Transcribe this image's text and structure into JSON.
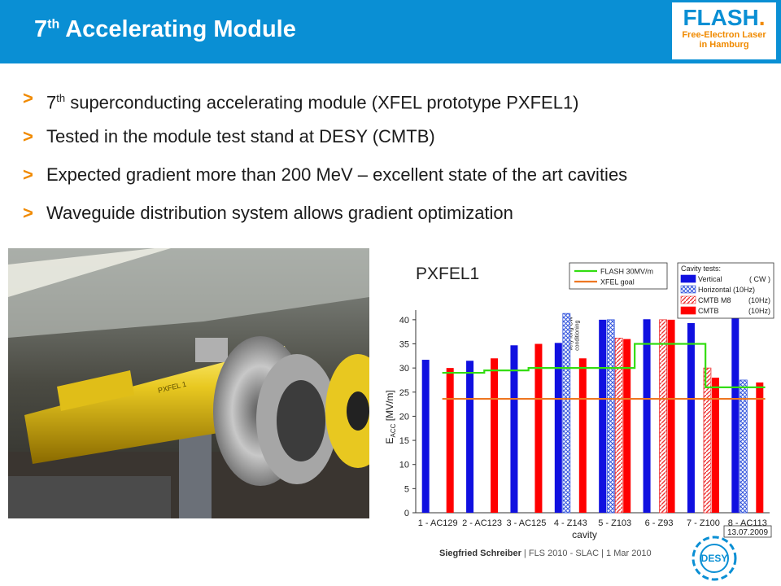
{
  "header": {
    "title_pre": "7",
    "title_sup": "th",
    "title_post": " Accelerating Module",
    "color": "#0a8fd4"
  },
  "logo": {
    "main": "FLASH",
    "dot": ".",
    "line1": "Free-Electron Laser",
    "line2": "in Hamburg"
  },
  "bullets": {
    "marker": ">",
    "b1_pre": "7",
    "b1_sup": "th",
    "b1_post": " superconducting accelerating module (XFEL prototype PXFEL1)",
    "b2": "Tested in the module test stand at DESY (CMTB)",
    "b3": "Expected gradient more than 200 MeV – excellent state of the art cavities",
    "b4": "Waveguide distribution system allows gradient optimization"
  },
  "photo": {
    "label": "PXFEL 1"
  },
  "chart_data": {
    "type": "bar",
    "title": "PXFEL1",
    "xlabel": "cavity",
    "ylabel": "E_ACC [MV/m]",
    "ylim": [
      0,
      42
    ],
    "yticks": [
      0,
      5,
      10,
      15,
      20,
      25,
      30,
      35,
      40
    ],
    "categories": [
      "1 - AC129",
      "2 - AC123",
      "3 - AC125",
      "4 - Z143",
      "5 - Z103",
      "6 - Z93",
      "7 - Z100",
      "8 - AC113"
    ],
    "series": [
      {
        "name": "Vertical",
        "suffix": "( CW )",
        "color": "#1010e0",
        "pattern": "solid",
        "values": [
          31.7,
          31.5,
          34.7,
          35.2,
          40,
          40.1,
          39.3,
          42.5
        ]
      },
      {
        "name": "Horizontal (10Hz)",
        "suffix": "",
        "color": "#3355dd",
        "pattern": "cross",
        "values": [
          null,
          null,
          null,
          41.3,
          40,
          null,
          null,
          27.5
        ]
      },
      {
        "name": "CMTB M8",
        "suffix": "(10Hz)",
        "color": "#ee3333",
        "pattern": "hatch",
        "values": [
          null,
          null,
          null,
          null,
          36.2,
          40,
          30,
          null
        ]
      },
      {
        "name": "CMTB",
        "suffix": "(10Hz)",
        "color": "#ff0000",
        "pattern": "solid",
        "values": [
          30,
          32,
          35,
          32,
          36,
          40,
          28,
          27
        ]
      }
    ],
    "lines": [
      {
        "name": "FLASH 30MV/m",
        "color": "#33dd11",
        "steps": [
          [
            0.6,
            1.55,
            29
          ],
          [
            1.55,
            2.55,
            29.5
          ],
          [
            2.55,
            3.55,
            30
          ],
          [
            3.55,
            4.95,
            30
          ],
          [
            4.95,
            6.55,
            35
          ],
          [
            6.55,
            7.9,
            26
          ]
        ]
      },
      {
        "name": "XFEL goal",
        "color": "#ee7722",
        "steps": [
          [
            0.6,
            7.9,
            23.6
          ]
        ]
      }
    ],
    "annotation": "very long CW conditioning",
    "legend_title": "Cavity tests:",
    "date": "13.07.2009",
    "legend": "top-right"
  },
  "footer": {
    "author": "Siegfried Schreiber",
    "rest": "  |  FLS 2010 - SLAC  |  1 Mar 2010"
  },
  "desy": {
    "label": "DESY"
  }
}
